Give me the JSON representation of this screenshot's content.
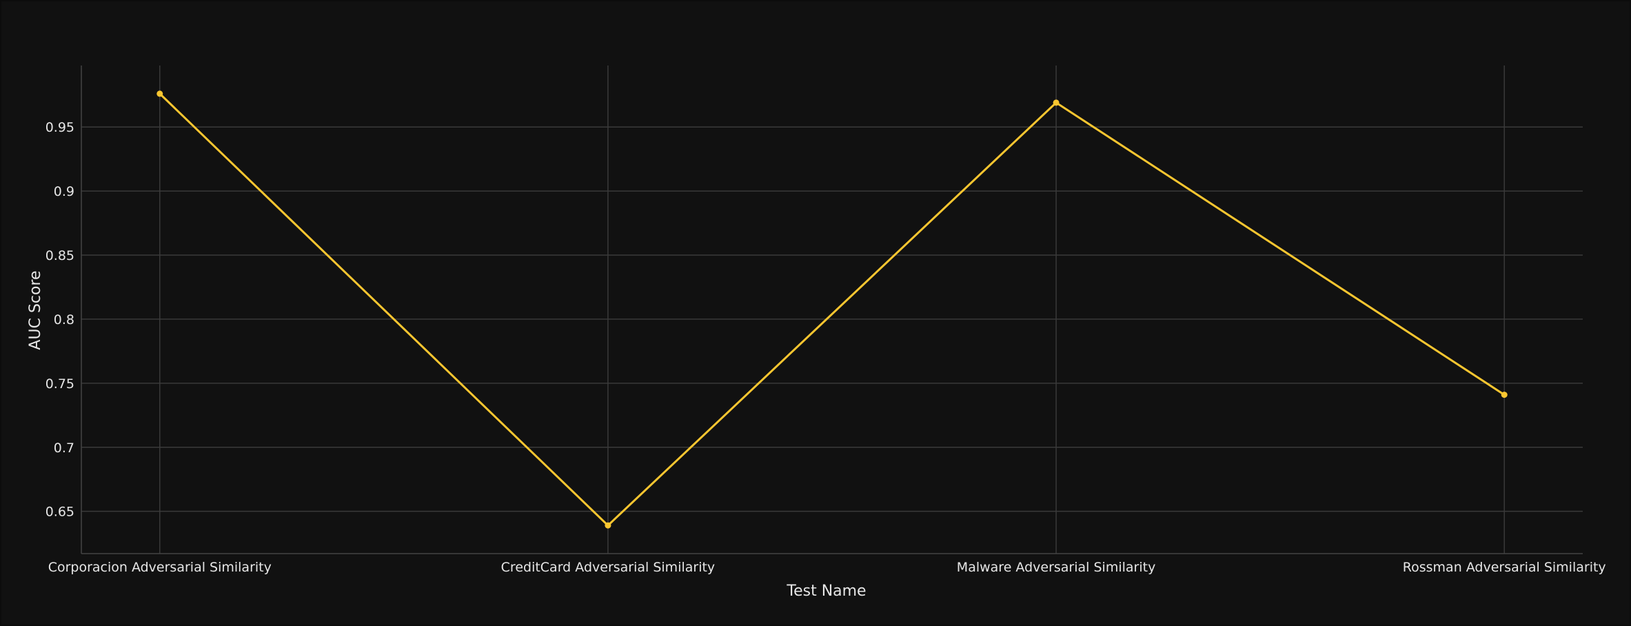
{
  "chart_data": {
    "type": "line",
    "title": "",
    "xlabel": "Test Name",
    "ylabel": "AUC Score",
    "categories": [
      "Corporacion Adversarial Similarity",
      "CreditCard Adversarial Similarity",
      "Malware Adversarial Similarity",
      "Rossman Adversarial Similarity"
    ],
    "series": [
      {
        "values": [
          0.976,
          0.639,
          0.969,
          0.741
        ]
      }
    ],
    "ylim": [
      0.617,
      0.998
    ],
    "yticks": [
      0.65,
      0.7,
      0.75,
      0.8,
      0.85,
      0.9,
      0.95
    ],
    "ytick_labels": [
      "0.65",
      "0.7",
      "0.75",
      "0.8",
      "0.85",
      "0.9",
      "0.95"
    ],
    "grid": true,
    "markers": true,
    "colors": {
      "line": "#f9c630",
      "background": "#111111",
      "grid": "#3a3a3a",
      "text": "#e6e6e6"
    }
  }
}
